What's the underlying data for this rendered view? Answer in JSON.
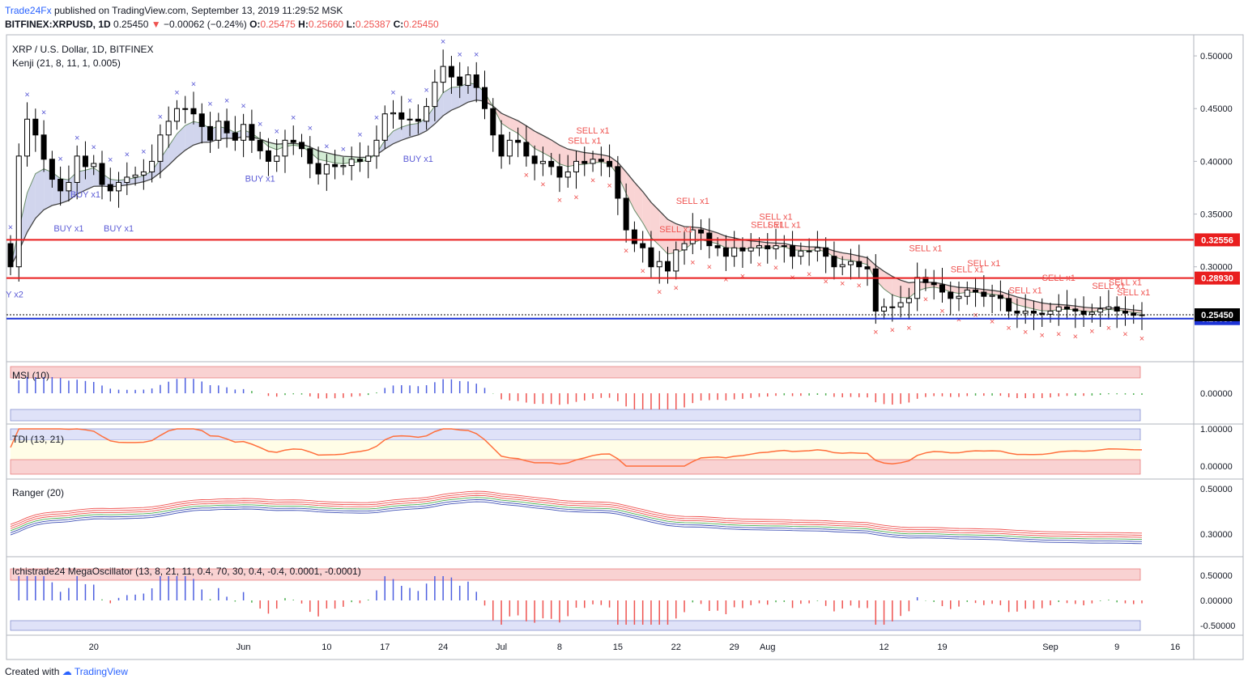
{
  "header": {
    "author": "Trade24Fx",
    "published_text": "published on TradingView.com, September 13, 2019 11:29:52 MSK",
    "symbol": "BITFINEX:XRPUSD, 1D",
    "last": "0.25450",
    "change": "−0.00062 (−0.24%)",
    "o_label": "O:",
    "o": "0.25475",
    "h_label": "H:",
    "h": "0.25660",
    "l_label": "L:",
    "l": "0.25387",
    "c_label": "C:",
    "c": "0.25450"
  },
  "footer": {
    "created_with": "Created with",
    "brand": "TradingView"
  },
  "colors": {
    "bull": "#ffffff",
    "bear": "#000000",
    "sell": "#ef5350",
    "buy": "#5b5bd6",
    "hline": "#e91e1e",
    "support": "#1c33d6",
    "axis_tag": "#e91e1e"
  },
  "chart_data": {
    "type": "candlestick",
    "title": "XRP / U.S. Dollar, 1D, BITFINEX",
    "indicator_label": "Kenji (21, 8, 11, 1, 0.005)",
    "price_axis": {
      "min": 0.21,
      "max": 0.52,
      "ticks": [
        "0.50000",
        "0.45000",
        "0.40000",
        "0.35000",
        "0.30000"
      ]
    },
    "x_ticks": [
      {
        "label": "20",
        "index": 10
      },
      {
        "label": "Jun",
        "index": 28
      },
      {
        "label": "10",
        "index": 38
      },
      {
        "label": "17",
        "index": 45
      },
      {
        "label": "24",
        "index": 52
      },
      {
        "label": "Jul",
        "index": 59
      },
      {
        "label": "8",
        "index": 66
      },
      {
        "label": "15",
        "index": 73
      },
      {
        "label": "22",
        "index": 80
      },
      {
        "label": "29",
        "index": 87
      },
      {
        "label": "Aug",
        "index": 91
      },
      {
        "label": "12",
        "index": 105
      },
      {
        "label": "19",
        "index": 112
      },
      {
        "label": "Sep",
        "index": 125
      },
      {
        "label": "9",
        "index": 133
      },
      {
        "label": "16",
        "index": 140
      }
    ],
    "horizontal_levels": [
      {
        "price": 0.32556,
        "label": "0.32556",
        "color": "#e91e1e"
      },
      {
        "price": 0.2893,
        "label": "0.28930",
        "color": "#e91e1e"
      },
      {
        "price": 0.2509,
        "label": "0.25090",
        "color": "#1c33d6"
      },
      {
        "price": 0.2545,
        "label": "0.25450",
        "color": "#000000"
      }
    ],
    "closes": [
      0.3,
      0.405,
      0.44,
      0.425,
      0.402,
      0.383,
      0.372,
      0.38,
      0.405,
      0.395,
      0.398,
      0.378,
      0.372,
      0.38,
      0.385,
      0.387,
      0.39,
      0.4,
      0.425,
      0.438,
      0.45,
      0.45,
      0.445,
      0.433,
      0.42,
      0.438,
      0.427,
      0.42,
      0.435,
      0.42,
      0.41,
      0.4,
      0.405,
      0.42,
      0.418,
      0.412,
      0.398,
      0.388,
      0.397,
      0.395,
      0.396,
      0.402,
      0.4,
      0.405,
      0.42,
      0.445,
      0.446,
      0.44,
      0.44,
      0.438,
      0.452,
      0.475,
      0.49,
      0.48,
      0.472,
      0.482,
      0.47,
      0.45,
      0.425,
      0.405,
      0.42,
      0.418,
      0.405,
      0.398,
      0.4,
      0.395,
      0.385,
      0.39,
      0.4,
      0.398,
      0.402,
      0.4,
      0.395,
      0.365,
      0.335,
      0.322,
      0.318,
      0.3,
      0.305,
      0.296,
      0.316,
      0.322,
      0.335,
      0.332,
      0.32,
      0.318,
      0.31,
      0.318,
      0.315,
      0.318,
      0.32,
      0.317,
      0.32,
      0.32,
      0.31,
      0.315,
      0.315,
      0.318,
      0.31,
      0.3,
      0.302,
      0.305,
      0.3,
      0.298,
      0.258,
      0.262,
      0.262,
      0.266,
      0.27,
      0.29,
      0.285,
      0.283,
      0.276,
      0.27,
      0.272,
      0.278,
      0.276,
      0.272,
      0.273,
      0.27,
      0.258,
      0.256,
      0.258,
      0.256,
      0.255,
      0.258,
      0.262,
      0.26,
      0.258,
      0.255,
      0.257,
      0.26,
      0.262,
      0.258,
      0.256,
      0.254,
      0.2545
    ],
    "sell_signals": [
      "SELL x1",
      "SELL x1",
      "SELL x1",
      "SELL x1",
      "SELL x1",
      "SELL x1",
      "SELL x1",
      "SELL x1",
      "SELL x1",
      "SELL x1",
      "SELL x1",
      "SELL x1",
      "SELL x1",
      "SELL x1",
      "SELL x1"
    ],
    "buy_signals": [
      "Y x2",
      "BUY x1",
      "BUY x1",
      "BUY x1",
      "BUY x1",
      "BUY x1"
    ],
    "panes": [
      {
        "name": "MSI (10)",
        "ticks": [
          "0.00000"
        ]
      },
      {
        "name": "TDI (13, 21)",
        "ticks": [
          "1.00000",
          "0.00000"
        ]
      },
      {
        "name": "Ranger (20)",
        "ticks": [
          "0.50000",
          "0.30000"
        ]
      },
      {
        "name": "Ichistrade24 MegaOscillator (13, 8, 21, 11, 0.4, 70, 30, 0.4, -0.4, 0.0001, -0.0001)",
        "ticks": [
          "0.50000",
          "0.00000",
          "-0.50000"
        ]
      }
    ]
  }
}
